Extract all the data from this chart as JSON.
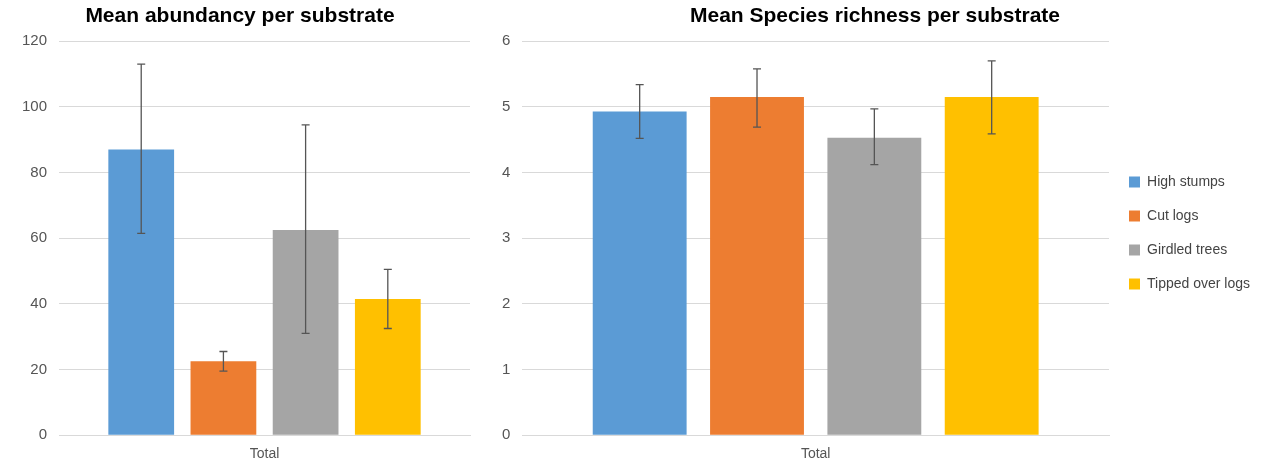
{
  "chart_data": [
    {
      "type": "bar",
      "title": "Mean abundancy per substrate",
      "categories": [
        "Total"
      ],
      "ylim": [
        0,
        120
      ],
      "yticks": [
        0,
        20,
        40,
        60,
        80,
        100,
        120
      ],
      "grid": "y",
      "legend": false,
      "series": [
        {
          "color": "#5b9bd5",
          "values": [
            87
          ],
          "errors": [
            [
              61.5,
              113
            ]
          ]
        },
        {
          "color": "#ed7d31",
          "values": [
            22.5
          ],
          "errors": [
            [
              19.5,
              25.5
            ]
          ]
        },
        {
          "color": "#a5a5a5",
          "values": [
            62.5
          ],
          "errors": [
            [
              31,
              94.5
            ]
          ]
        },
        {
          "color": "#ffc000",
          "values": [
            41.5
          ],
          "errors": [
            [
              32.5,
              50.5
            ]
          ]
        }
      ]
    },
    {
      "type": "bar",
      "title": "Mean Species richness per substrate",
      "categories": [
        "Total"
      ],
      "ylim": [
        0,
        6
      ],
      "yticks": [
        0,
        1,
        2,
        3,
        4,
        5,
        6
      ],
      "grid": "y",
      "legend": "right",
      "series": [
        {
          "name": "High stumps",
          "color": "#5b9bd5",
          "values": [
            4.93
          ],
          "errors": [
            [
              4.52,
              5.34
            ]
          ]
        },
        {
          "name": "Cut logs",
          "color": "#ed7d31",
          "values": [
            5.15
          ],
          "errors": [
            [
              4.69,
              5.58
            ]
          ]
        },
        {
          "name": "Girdled trees",
          "color": "#a5a5a5",
          "values": [
            4.53
          ],
          "errors": [
            [
              4.12,
              4.97
            ]
          ]
        },
        {
          "name": "Tipped over logs",
          "color": "#ffc000",
          "values": [
            5.15
          ],
          "errors": [
            [
              4.59,
              5.7
            ]
          ]
        }
      ]
    }
  ]
}
